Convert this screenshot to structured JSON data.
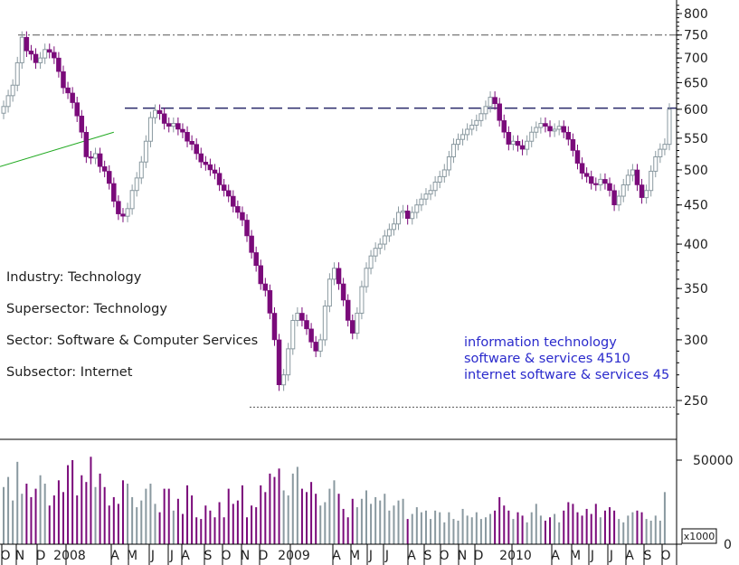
{
  "chart_data": {
    "type": "candlestick",
    "title": "",
    "price_axis": {
      "scale": "log",
      "range": [
        235,
        820
      ],
      "ticks": [
        250,
        300,
        350,
        400,
        450,
        500,
        550,
        600,
        650,
        700,
        750,
        800
      ]
    },
    "volume_axis": {
      "range": [
        0,
        70000
      ],
      "ticks": [
        0,
        50000
      ],
      "unit_label": "x1000"
    },
    "time_axis": {
      "labels": [
        "O",
        "N",
        "D",
        "2008",
        "A",
        "M",
        "J",
        "J",
        "A",
        "S",
        "O",
        "N",
        "D",
        "2009",
        "A",
        "M",
        "J",
        "J",
        "A",
        "S",
        "O",
        "N",
        "D",
        "2010",
        "A",
        "M",
        "J",
        "J",
        "A",
        "S",
        "O"
      ],
      "gridlines": false
    },
    "weekly_close": [
      605,
      625,
      645,
      690,
      745,
      715,
      708,
      690,
      700,
      718,
      712,
      700,
      672,
      640,
      630,
      612,
      588,
      560,
      520,
      518,
      525,
      505,
      498,
      480,
      455,
      438,
      435,
      445,
      470,
      488,
      512,
      545,
      585,
      598,
      592,
      575,
      570,
      575,
      565,
      560,
      545,
      540,
      525,
      512,
      508,
      500,
      495,
      478,
      470,
      462,
      448,
      440,
      430,
      410,
      390,
      375,
      355,
      348,
      325,
      300,
      262,
      270,
      292,
      318,
      325,
      318,
      310,
      298,
      290,
      300,
      332,
      360,
      372,
      355,
      338,
      318,
      306,
      325,
      352,
      372,
      386,
      395,
      400,
      410,
      418,
      425,
      440,
      442,
      432,
      440,
      450,
      458,
      465,
      470,
      482,
      490,
      500,
      520,
      540,
      548,
      556,
      565,
      572,
      580,
      592,
      605,
      622,
      610,
      580,
      560,
      540,
      545,
      538,
      532,
      545,
      560,
      568,
      575,
      570,
      562,
      565,
      570,
      560,
      548,
      530,
      510,
      495,
      490,
      480,
      478,
      486,
      480,
      470,
      450,
      462,
      478,
      492,
      500,
      478,
      460,
      470,
      498,
      520,
      532,
      540,
      600
    ],
    "volume": [
      34000,
      40000,
      26000,
      49000,
      30000,
      36000,
      28000,
      33000,
      41000,
      36000,
      23000,
      29000,
      38000,
      31000,
      47000,
      50000,
      29000,
      41000,
      37000,
      52000,
      34000,
      42000,
      34000,
      23000,
      28000,
      24000,
      38000,
      36000,
      28000,
      22000,
      26000,
      33000,
      36000,
      24000,
      19000,
      33000,
      33000,
      20000,
      27000,
      18000,
      35000,
      29000,
      16000,
      15000,
      23000,
      20000,
      16000,
      25000,
      16000,
      33000,
      24000,
      26000,
      35000,
      16000,
      23000,
      22000,
      35000,
      31000,
      42000,
      40000,
      45000,
      32000,
      29000,
      42000,
      46000,
      33000,
      31000,
      37000,
      30000,
      23000,
      25000,
      33000,
      38000,
      30000,
      21000,
      16000,
      27000,
      22000,
      27000,
      32000,
      24000,
      28000,
      26000,
      30000,
      20000,
      23000,
      26000,
      27000,
      15000,
      18000,
      22000,
      19000,
      20000,
      15000,
      20000,
      19000,
      13000,
      19000,
      15000,
      14000,
      21000,
      17000,
      16000,
      19000,
      15000,
      16000,
      18000,
      20000,
      28000,
      23000,
      20000,
      15000,
      19000,
      17000,
      13000,
      19000,
      24000,
      17000,
      14000,
      16000,
      18000,
      13000,
      20000,
      25000,
      24000,
      19000,
      17000,
      21000,
      18000,
      24000,
      16000,
      20000,
      22000,
      20000,
      15000,
      13000,
      17000,
      19000,
      20000,
      19000,
      15000,
      14000,
      17000,
      14000,
      31000
    ],
    "reference_lines": [
      {
        "style": "dash-dot",
        "value": 750
      },
      {
        "style": "dashed",
        "value": 602
      },
      {
        "style": "dotted",
        "value": 245
      },
      {
        "style": "trendline",
        "color": "#22aa22",
        "from": [
          0,
          505
        ],
        "to": [
          24,
          560
        ]
      }
    ],
    "colors": {
      "up_candle": "#8a99a0",
      "down_candle": "#7a0a7a",
      "volume_up": "#8a99a0",
      "volume_down": "#7a0a7a",
      "axis": "#000000",
      "annotation_left": "#202020",
      "annotation_right": "#2a2acc"
    },
    "annotations_left": [
      "Industry: Technology",
      "Supersector: Technology",
      "Sector: Software & Computer Services",
      "Subsector: Internet"
    ],
    "annotations_right": [
      "information technology",
      "software & services 4510",
      "internet software & services 45"
    ]
  }
}
